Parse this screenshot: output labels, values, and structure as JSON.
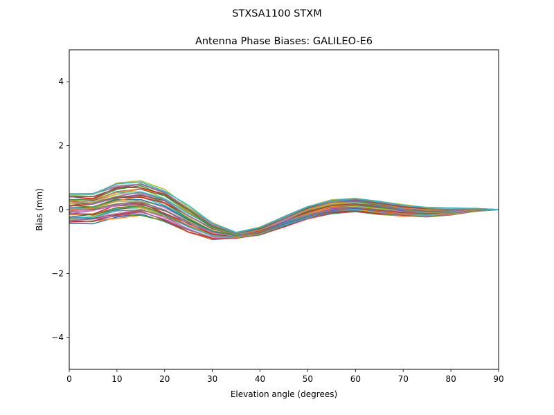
{
  "suptitle": "STXSA1100       STXM",
  "chart_data": {
    "type": "line",
    "title": "Antenna Phase Biases: GALILEO-E6",
    "xlabel": "Elevation angle (degrees)",
    "ylabel": "Bias (mm)",
    "xlim": [
      0,
      90
    ],
    "ylim": [
      -5,
      5
    ],
    "xticks": [
      0,
      10,
      20,
      30,
      40,
      50,
      60,
      70,
      80,
      90
    ],
    "yticks": [
      -4,
      -2,
      0,
      2,
      4
    ],
    "ytick_labels": [
      "−4",
      "−2",
      "0",
      "2",
      "4"
    ],
    "grid": false,
    "x": [
      0,
      5,
      10,
      15,
      20,
      25,
      30,
      35,
      40,
      45,
      50,
      55,
      60,
      65,
      70,
      75,
      80,
      85,
      90
    ],
    "series_count": 40,
    "upper_envelope": [
      0.5,
      0.55,
      0.8,
      0.9,
      0.62,
      0.1,
      -0.42,
      -0.72,
      -0.55,
      -0.22,
      0.1,
      0.3,
      0.35,
      0.25,
      0.15,
      0.08,
      0.05,
      0.04,
      0.0
    ],
    "lower_envelope": [
      -0.45,
      -0.42,
      -0.25,
      -0.2,
      -0.4,
      -0.72,
      -0.92,
      -0.9,
      -0.8,
      -0.55,
      -0.3,
      -0.12,
      -0.08,
      -0.14,
      -0.2,
      -0.22,
      -0.16,
      -0.06,
      0.0
    ],
    "colors": [
      "#1f77b4",
      "#ff7f0e",
      "#2ca02c",
      "#d62728",
      "#9467bd",
      "#8c564b",
      "#e377c2",
      "#7f7f7f",
      "#bcbd22",
      "#17becf"
    ]
  }
}
